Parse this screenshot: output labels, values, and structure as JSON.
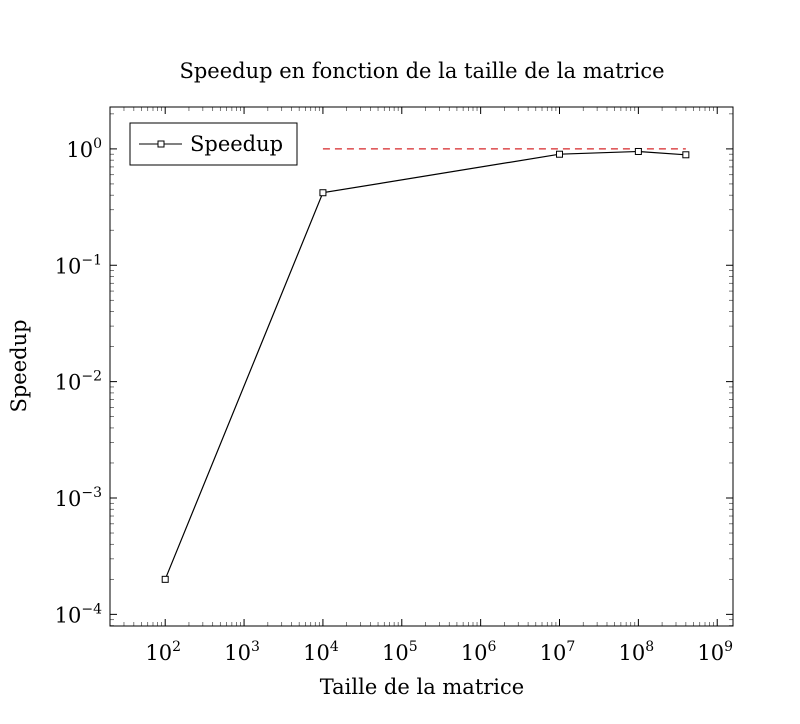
{
  "chart_data": {
    "type": "line",
    "title": "Speedup en fonction de la taille de la matrice",
    "xlabel": "Taille de la matrice",
    "ylabel": "Speedup",
    "xscale": "log",
    "yscale": "log",
    "xlim_exp": [
      1.3,
      9.2
    ],
    "ylim_exp": [
      -4.1,
      0.36
    ],
    "x_ticks": [
      {
        "base": "10",
        "exp": "2",
        "value": 100
      },
      {
        "base": "10",
        "exp": "3",
        "value": 1000
      },
      {
        "base": "10",
        "exp": "4",
        "value": 10000
      },
      {
        "base": "10",
        "exp": "5",
        "value": 100000
      },
      {
        "base": "10",
        "exp": "6",
        "value": 1000000
      },
      {
        "base": "10",
        "exp": "7",
        "value": 10000000
      },
      {
        "base": "10",
        "exp": "8",
        "value": 100000000
      },
      {
        "base": "10",
        "exp": "9",
        "value": 1000000000
      }
    ],
    "y_ticks": [
      {
        "base": "10",
        "exp": "0",
        "value": 1
      },
      {
        "base": "10",
        "exp": "−1",
        "value": 0.1
      },
      {
        "base": "10",
        "exp": "−2",
        "value": 0.01
      },
      {
        "base": "10",
        "exp": "−3",
        "value": 0.001
      },
      {
        "base": "10",
        "exp": "−4",
        "value": 0.0001
      }
    ],
    "series": [
      {
        "name": "Speedup",
        "color": "#000000",
        "marker": "square",
        "x": [
          100,
          10000,
          10000000,
          100000000,
          400000000
        ],
        "y": [
          0.0002,
          0.42,
          0.9,
          0.95,
          0.89
        ]
      }
    ],
    "reference_line": {
      "y": 1,
      "x_range": [
        10000,
        400000000
      ],
      "color": "#d62728",
      "style": "dashed"
    },
    "legend": {
      "position": "top-left",
      "label": "Speedup"
    },
    "grid": false
  }
}
